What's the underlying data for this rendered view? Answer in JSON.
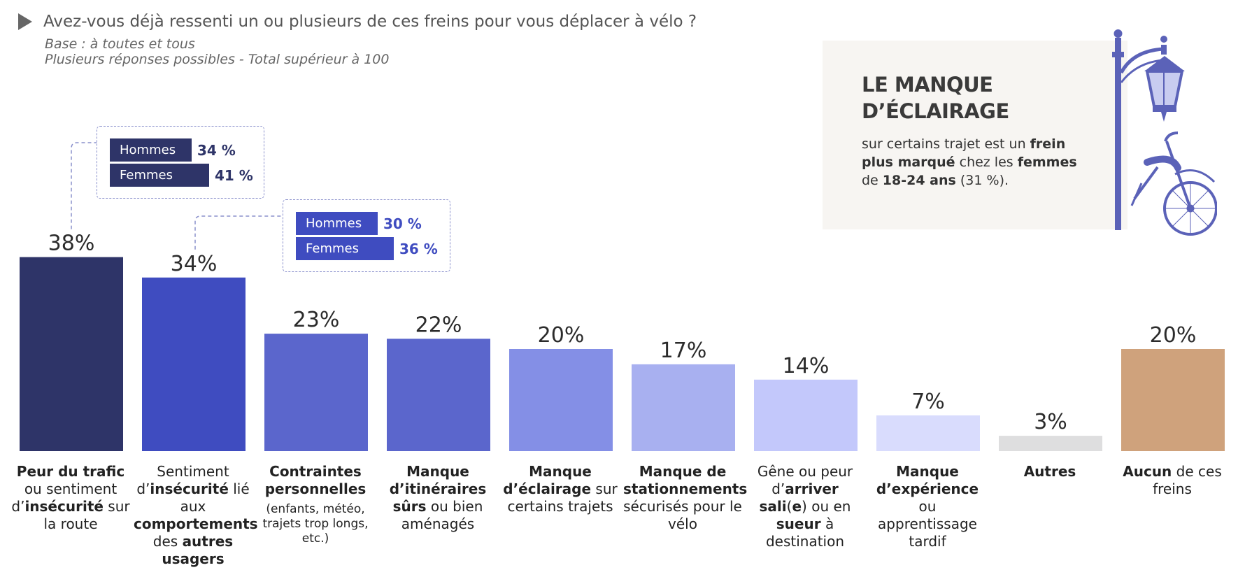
{
  "header": {
    "question": "Avez-vous déjà ressenti un ou plusieurs de ces freins pour vous déplacer à vélo ?",
    "base": "Base : à toutes et tous",
    "note": "Plusieurs réponses possibles - Total supérieur à 100"
  },
  "chart_data": {
    "type": "bar",
    "title": "Avez-vous déjà ressenti un ou plusieurs de ces freins pour vous déplacer à vélo ?",
    "categories": [
      "Peur du trafic ou sentiment d'insécurité sur la route",
      "Sentiment d'insécurité lié aux comportements des autres usagers",
      "Contraintes personnelles (enfants, météo, trajets trop longs, etc.)",
      "Manque d'itinéraires sûrs ou bien aménagés",
      "Manque d'éclairage sur certains trajets",
      "Manque de stationnements sécurisés pour le vélo",
      "Gêne ou peur d'arriver sali(e) ou en sueur à destination",
      "Manque d'expérience ou apprentissage tardif",
      "Autres",
      "Aucun de ces freins"
    ],
    "values": [
      38,
      34,
      23,
      22,
      20,
      17,
      14,
      7,
      3,
      20
    ],
    "value_labels": [
      "38%",
      "34%",
      "23%",
      "22%",
      "20%",
      "17%",
      "14%",
      "7%",
      "3%",
      "20%"
    ],
    "colors": [
      "#2e3468",
      "#3f4cc0",
      "#5b66cc",
      "#5b66cc",
      "#848fe6",
      "#a8b0f0",
      "#c3c8fb",
      "#d9dcfd",
      "#dededf",
      "#cfa27c"
    ],
    "ylim": [
      0,
      40
    ],
    "xlabel": "",
    "ylabel": "",
    "breakdowns": [
      {
        "bar_index": 0,
        "rows": [
          {
            "label": "Hommes",
            "value": "34 %",
            "value_num": 34
          },
          {
            "label": "Femmes",
            "value": "41 %",
            "value_num": 41
          }
        ]
      },
      {
        "bar_index": 1,
        "rows": [
          {
            "label": "Hommes",
            "value": "30 %",
            "value_num": 30
          },
          {
            "label": "Femmes",
            "value": "36 %",
            "value_num": 36
          }
        ]
      }
    ]
  },
  "callout": {
    "title_line1": "LE MANQUE",
    "title_line2": "D’ÉCLAIRAGE",
    "text_part1": "sur certains trajet est un ",
    "text_bold1": "frein plus marqué",
    "text_part2": " chez les ",
    "text_bold2": "femmes",
    "text_part3": " de ",
    "text_bold3": "18-24 ans",
    "text_part4": " (31 %)."
  },
  "labels": {
    "c0": {
      "b1": "Peur du trafic",
      "t1": " ou sentiment d’",
      "b2": "insécurité",
      "t2": " sur la route"
    },
    "c1": {
      "t1": "Sentiment d’",
      "b1": "insécurité",
      "t2": " lié aux ",
      "b2": "comportements",
      "t3": " des ",
      "b3": "autres usagers"
    },
    "c2": {
      "b1": "Contraintes personnelles",
      "note": "(enfants, météo, trajets trop longs, etc.)"
    },
    "c3": {
      "b1": "Manque d’itinéraires sûrs",
      "t1": " ou bien aménagés"
    },
    "c4": {
      "b1": "Manque d’éclairage",
      "t1": " sur certains trajets"
    },
    "c5": {
      "b1": "Manque de stationnements",
      "t1": " sécurisés pour le vélo"
    },
    "c6": {
      "t1": "Gêne ou peur d’",
      "b1": "arriver sali",
      "t2": "(",
      "b2": "e",
      "t3": ") ou en ",
      "b3": "sueur",
      "t4": " à destination"
    },
    "c7": {
      "b1": "Manque d’expérience",
      "t1": " ou apprentissage tardif"
    },
    "c8": {
      "b1": "Autres"
    },
    "c9": {
      "b1": "Aucun",
      "t1": " de ces freins"
    }
  }
}
